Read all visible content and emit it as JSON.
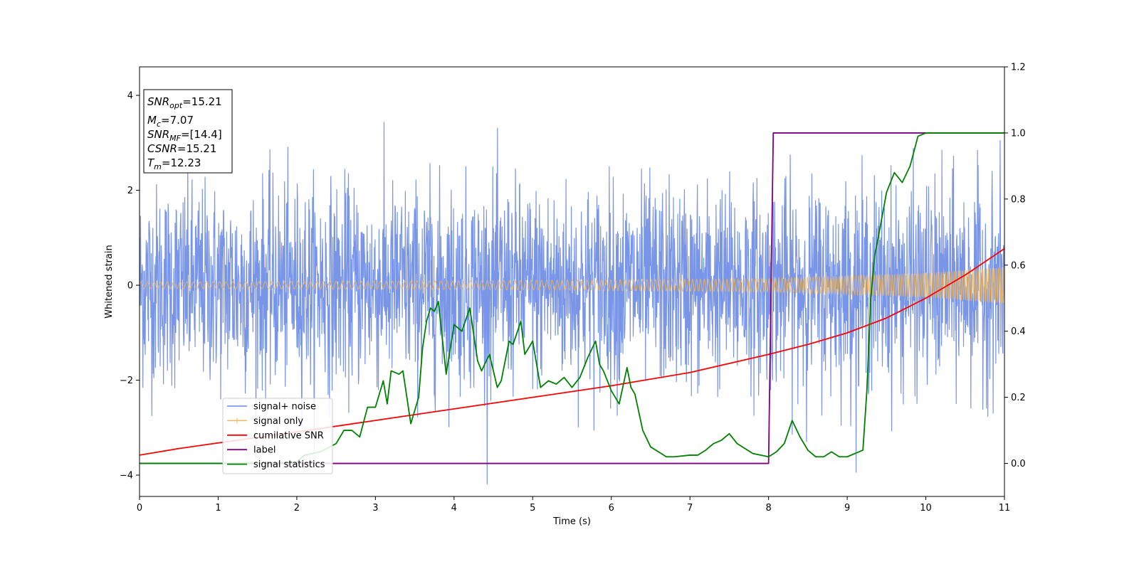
{
  "chart_data": {
    "type": "line",
    "xlabel": "Time (s)",
    "ylabel": "Whitened strain",
    "xlim": [
      0,
      11
    ],
    "ylim_left": [
      -4.45,
      4.6
    ],
    "ylim_right": [
      -0.1,
      1.2
    ],
    "x_ticks": [
      "0",
      "1",
      "2",
      "3",
      "4",
      "5",
      "6",
      "7",
      "8",
      "9",
      "10",
      "11"
    ],
    "y_left_ticks": [
      "4",
      "2",
      "0",
      "−2",
      "−4"
    ],
    "y_right_ticks": [
      "1.2",
      "1.0",
      "0.8",
      "0.6",
      "0.4",
      "0.2",
      "0.0"
    ],
    "legend_position": "lower-left",
    "colors": {
      "noise": "#6a8ae6",
      "signal": "#f0b65a",
      "cumulative": "#ff0000",
      "label": "#800080",
      "stats": "#008000"
    },
    "info_box": {
      "snr_opt": {
        "var": "SNR",
        "sub": "opt",
        "val": "=15.21"
      },
      "mc": {
        "var": "M",
        "sub": "c",
        "val": "=7.07"
      },
      "snr_mf": {
        "var": "SNR",
        "sub": "MF",
        "val": "=[14.4]"
      },
      "csnr": {
        "var": "CSNR",
        "val": "=15.21"
      },
      "tm": {
        "var": "T",
        "sub": "m",
        "val": "=12.23"
      }
    },
    "series": [
      {
        "name": "signal+ noise",
        "axis": "left",
        "description_values": {
          "std": 1.0,
          "max_abs_approx": 4.2
        }
      },
      {
        "name": "signal only",
        "axis": "left",
        "amplitude_envelope": {
          "x": [
            0,
            4,
            8,
            10,
            11
          ],
          "amp": [
            0.07,
            0.09,
            0.14,
            0.25,
            0.38
          ]
        }
      },
      {
        "name": "cumilative SNR",
        "axis": "right",
        "x": [
          0,
          0.5,
          1,
          2,
          3,
          4,
          5,
          6,
          7,
          8,
          8.5,
          9,
          9.5,
          10,
          10.5,
          11
        ],
        "y": [
          0.025,
          0.045,
          0.062,
          0.095,
          0.13,
          0.165,
          0.2,
          0.235,
          0.275,
          0.33,
          0.36,
          0.395,
          0.44,
          0.5,
          0.57,
          0.65
        ]
      },
      {
        "name": "label",
        "axis": "right",
        "x": [
          0,
          8.0,
          8.06,
          11
        ],
        "y": [
          0.0,
          0.0,
          1.0,
          1.0
        ]
      },
      {
        "name": "signal statistics",
        "axis": "right",
        "x": [
          0,
          1.0,
          1.8,
          2.0,
          2.1,
          2.3,
          2.5,
          2.6,
          2.7,
          2.8,
          2.9,
          3.0,
          3.1,
          3.15,
          3.2,
          3.3,
          3.35,
          3.45,
          3.55,
          3.6,
          3.65,
          3.7,
          3.75,
          3.8,
          3.85,
          3.9,
          4.0,
          4.1,
          4.2,
          4.3,
          4.35,
          4.45,
          4.55,
          4.6,
          4.7,
          4.75,
          4.85,
          4.9,
          5.0,
          5.1,
          5.2,
          5.3,
          5.4,
          5.5,
          5.6,
          5.7,
          5.8,
          5.85,
          5.9,
          6.0,
          6.1,
          6.2,
          6.25,
          6.3,
          6.4,
          6.5,
          6.6,
          6.7,
          6.8,
          7.0,
          7.1,
          7.2,
          7.3,
          7.4,
          7.5,
          7.6,
          7.7,
          7.8,
          7.9,
          8.0,
          8.1,
          8.2,
          8.3,
          8.4,
          8.5,
          8.6,
          8.7,
          8.8,
          8.9,
          9.0,
          9.1,
          9.2,
          9.25,
          9.3,
          9.35,
          9.4,
          9.5,
          9.6,
          9.7,
          9.8,
          9.9,
          10.0,
          10.2,
          10.5,
          11.0
        ],
        "y": [
          0.0,
          0.0,
          0.002,
          0.005,
          0.025,
          0.035,
          0.06,
          0.1,
          0.1,
          0.08,
          0.17,
          0.17,
          0.25,
          0.18,
          0.28,
          0.27,
          0.28,
          0.12,
          0.2,
          0.35,
          0.43,
          0.47,
          0.46,
          0.49,
          0.38,
          0.27,
          0.42,
          0.4,
          0.47,
          0.31,
          0.28,
          0.33,
          0.23,
          0.25,
          0.37,
          0.36,
          0.43,
          0.33,
          0.37,
          0.23,
          0.25,
          0.24,
          0.26,
          0.23,
          0.26,
          0.32,
          0.37,
          0.3,
          0.28,
          0.22,
          0.18,
          0.29,
          0.23,
          0.21,
          0.1,
          0.05,
          0.035,
          0.02,
          0.02,
          0.025,
          0.025,
          0.04,
          0.06,
          0.07,
          0.09,
          0.06,
          0.045,
          0.03,
          0.025,
          0.02,
          0.035,
          0.06,
          0.13,
          0.08,
          0.04,
          0.02,
          0.02,
          0.035,
          0.02,
          0.02,
          0.03,
          0.04,
          0.22,
          0.5,
          0.63,
          0.69,
          0.82,
          0.88,
          0.85,
          0.9,
          0.99,
          1.0,
          1.0,
          1.0,
          1.0
        ]
      }
    ]
  }
}
